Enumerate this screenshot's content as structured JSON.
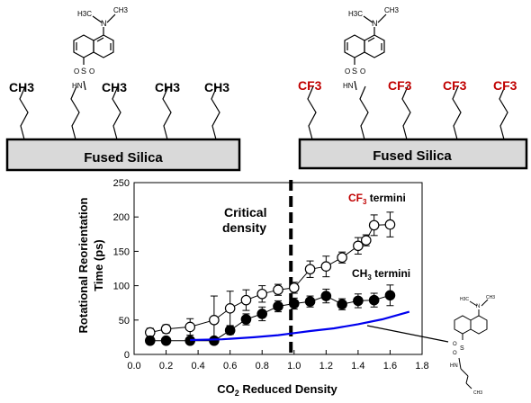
{
  "panel_left": {
    "terminal_labels": [
      "CH3",
      "CH3",
      "CH3",
      "CH3"
    ],
    "substrate_label": "Fused Silica",
    "probe": {
      "amine_left": "H3C",
      "amine_right": "CH3",
      "nitrogen": "N",
      "sulfur": "S",
      "oxygen_top": "O",
      "oxygen_bottom": "O",
      "nh": "HN"
    }
  },
  "panel_right": {
    "terminal_labels": [
      "CF3",
      "CF3",
      "CF3",
      "CF3"
    ],
    "substrate_label": "Fused Silica",
    "probe": {
      "amine_left": "H3C",
      "amine_right": "CH3",
      "nitrogen": "N",
      "sulfur": "S",
      "oxygen_top": "O",
      "oxygen_bottom": "O",
      "nh": "HN"
    }
  },
  "colors": {
    "black": "#000000",
    "red": "#c00000",
    "blue": "#0000ee",
    "substrate_fill": "#d9d9d9"
  },
  "chart_data": {
    "type": "scatter",
    "xlabel": "CO2 Reduced Density",
    "ylabel": "Rotational Reorientation Time (ps)",
    "xlim": [
      0.0,
      1.8
    ],
    "ylim": [
      0,
      250
    ],
    "xticks": [
      "0.0",
      "0.2",
      "0.4",
      "0.6",
      "0.8",
      "1.0",
      "1.2",
      "1.4",
      "1.6",
      "1.8"
    ],
    "yticks": [
      "0",
      "50",
      "100",
      "150",
      "200",
      "250"
    ],
    "grid": false,
    "critical_line": {
      "x": 0.98,
      "label_line1": "Critical",
      "label_line2": "density"
    },
    "annotations": {
      "cf3": "CF3 termini",
      "ch3": "CH3 termini"
    },
    "series": [
      {
        "name": "CF3 termini",
        "marker": "open-circle",
        "points": [
          {
            "x": 0.1,
            "y": 32,
            "err": 6
          },
          {
            "x": 0.2,
            "y": 37,
            "err": 6
          },
          {
            "x": 0.35,
            "y": 40,
            "err": 12
          },
          {
            "x": 0.5,
            "y": 50,
            "err": 35
          },
          {
            "x": 0.6,
            "y": 67,
            "err": 25
          },
          {
            "x": 0.7,
            "y": 79,
            "err": 15
          },
          {
            "x": 0.8,
            "y": 88,
            "err": 12
          },
          {
            "x": 0.9,
            "y": 94,
            "err": 8
          },
          {
            "x": 1.0,
            "y": 97,
            "err": 8
          },
          {
            "x": 1.1,
            "y": 124,
            "err": 12
          },
          {
            "x": 1.2,
            "y": 128,
            "err": 15
          },
          {
            "x": 1.3,
            "y": 141,
            "err": 8
          },
          {
            "x": 1.4,
            "y": 158,
            "err": 12
          },
          {
            "x": 1.45,
            "y": 166,
            "err": 8
          },
          {
            "x": 1.5,
            "y": 188,
            "err": 15
          },
          {
            "x": 1.6,
            "y": 189,
            "err": 18
          }
        ]
      },
      {
        "name": "CH3 termini",
        "marker": "filled-circle",
        "points": [
          {
            "x": 0.1,
            "y": 20,
            "err": 4
          },
          {
            "x": 0.2,
            "y": 20,
            "err": 4
          },
          {
            "x": 0.35,
            "y": 20,
            "err": 4
          },
          {
            "x": 0.5,
            "y": 20,
            "err": 4
          },
          {
            "x": 0.6,
            "y": 35,
            "err": 6
          },
          {
            "x": 0.7,
            "y": 51,
            "err": 8
          },
          {
            "x": 0.8,
            "y": 59,
            "err": 10
          },
          {
            "x": 0.9,
            "y": 70,
            "err": 8
          },
          {
            "x": 1.0,
            "y": 74,
            "err": 8
          },
          {
            "x": 1.1,
            "y": 77,
            "err": 8
          },
          {
            "x": 1.2,
            "y": 85,
            "err": 10
          },
          {
            "x": 1.3,
            "y": 73,
            "err": 8
          },
          {
            "x": 1.4,
            "y": 78,
            "err": 10
          },
          {
            "x": 1.5,
            "y": 79,
            "err": 10
          },
          {
            "x": 1.6,
            "y": 86,
            "err": 15
          }
        ]
      },
      {
        "name": "",
        "marker": "line",
        "color": "#0000ee",
        "points": [
          {
            "x": 0.35,
            "y": 21
          },
          {
            "x": 0.55,
            "y": 22
          },
          {
            "x": 0.75,
            "y": 25
          },
          {
            "x": 0.9,
            "y": 28
          },
          {
            "x": 1.0,
            "y": 31
          },
          {
            "x": 1.1,
            "y": 34
          },
          {
            "x": 1.25,
            "y": 38
          },
          {
            "x": 1.4,
            "y": 44
          },
          {
            "x": 1.55,
            "y": 51
          },
          {
            "x": 1.72,
            "y": 62
          }
        ]
      }
    ]
  },
  "inset_probe": {
    "amine_left": "H3C",
    "amine_right": "CH3",
    "nitrogen": "N",
    "sulfur": "S",
    "oxygen_top": "O",
    "oxygen_bottom": "O",
    "nh": "HN",
    "chain_end": "CH3"
  }
}
